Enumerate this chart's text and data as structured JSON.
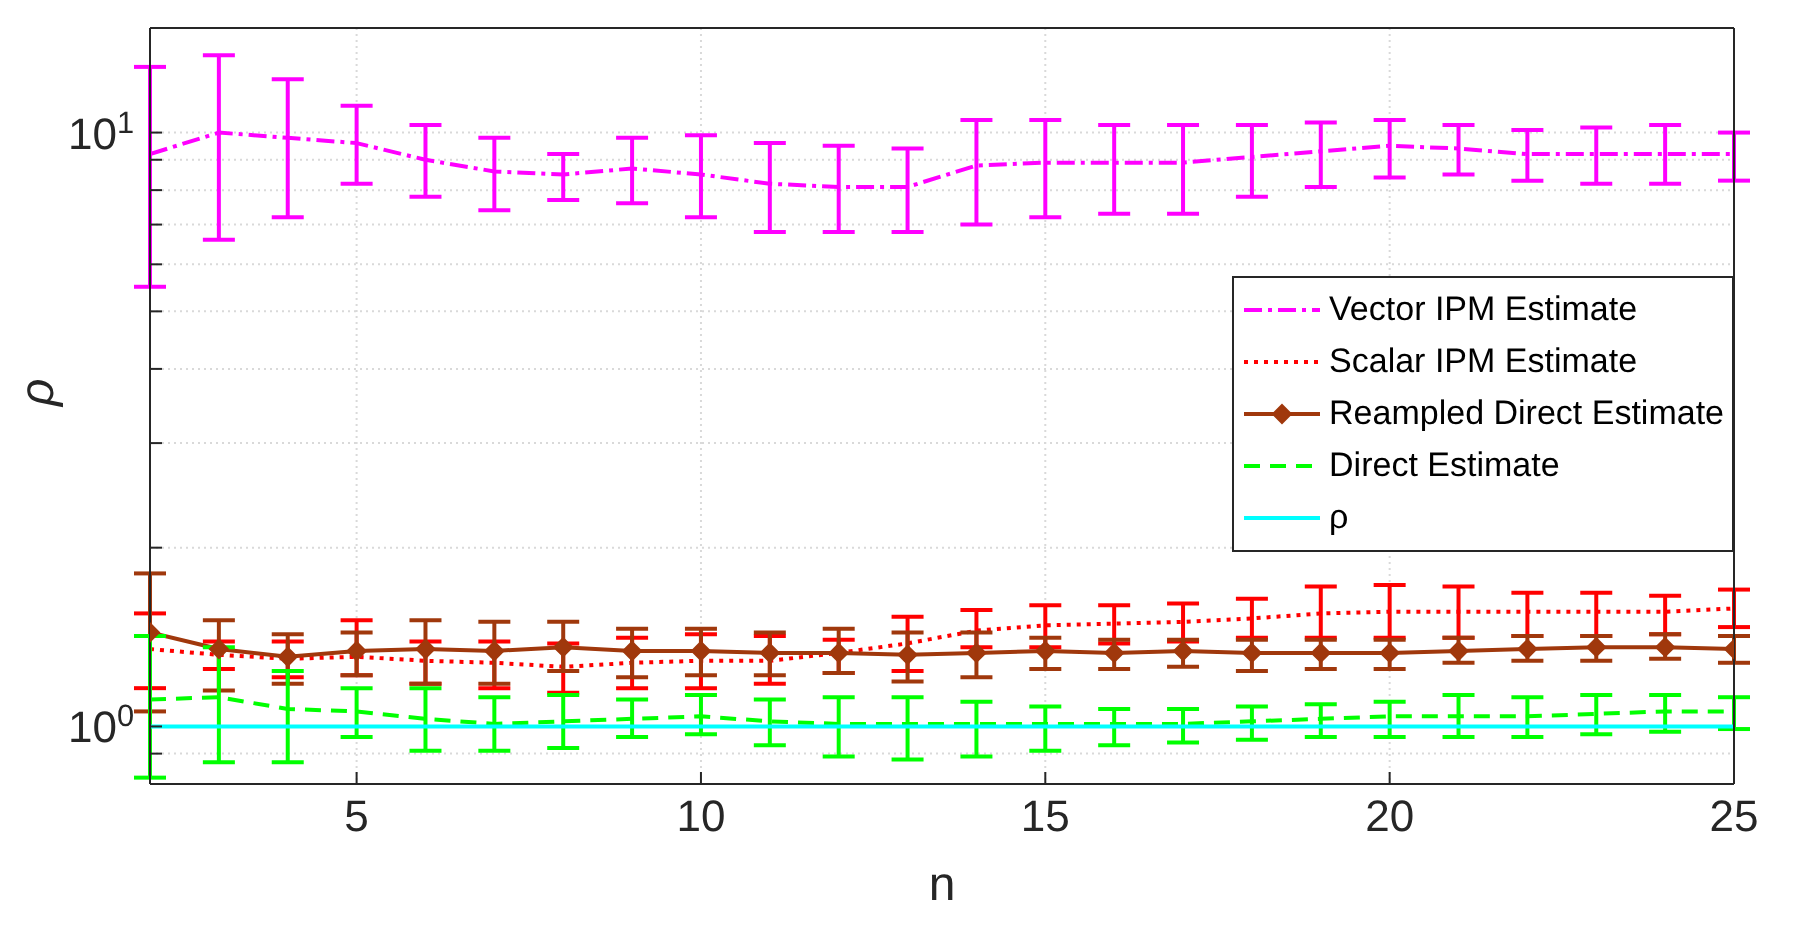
{
  "chart_data": {
    "type": "line",
    "xlabel": "n",
    "ylabel": "ρ",
    "log": "y",
    "grid": true,
    "legend": "right",
    "x": [
      2,
      3,
      4,
      5,
      6,
      7,
      8,
      9,
      10,
      11,
      12,
      13,
      14,
      15,
      16,
      17,
      18,
      19,
      20,
      21,
      22,
      23,
      24,
      25
    ],
    "xlim": [
      2,
      25
    ],
    "xticks": [
      5,
      10,
      15,
      20,
      25
    ],
    "ylim": [
      0.8,
      15
    ],
    "yticks": [
      {
        "value": 0.9,
        "label": null
      },
      {
        "value": 1,
        "label": "10$^{0}$"
      },
      {
        "value": 2,
        "label": null
      },
      {
        "value": 3,
        "label": null
      },
      {
        "value": 4,
        "label": null
      },
      {
        "value": 5,
        "label": null
      },
      {
        "value": 6,
        "label": null
      },
      {
        "value": 7,
        "label": null
      },
      {
        "value": 8,
        "label": null
      },
      {
        "value": 9,
        "label": null
      },
      {
        "value": 10,
        "label": "10$^{1}$"
      }
    ],
    "series": [
      {
        "name": "Vector IPM Estimate",
        "color": "#ff00ff",
        "line_style": "dashdot",
        "marker": "none",
        "values": [
          9.2,
          10.0,
          9.8,
          9.6,
          9.0,
          8.6,
          8.5,
          8.7,
          8.5,
          8.2,
          8.1,
          8.1,
          8.8,
          8.9,
          8.9,
          8.9,
          9.1,
          9.3,
          9.5,
          9.4,
          9.2,
          9.2,
          9.2,
          9.2
        ],
        "errors": [
          [
            5.5,
            12.9
          ],
          [
            6.6,
            13.5
          ],
          [
            7.2,
            12.3
          ],
          [
            8.2,
            11.1
          ],
          [
            7.8,
            10.3
          ],
          [
            7.4,
            9.8
          ],
          [
            7.7,
            9.2
          ],
          [
            7.6,
            9.8
          ],
          [
            7.2,
            9.9
          ],
          [
            6.8,
            9.6
          ],
          [
            6.8,
            9.5
          ],
          [
            6.8,
            9.4
          ],
          [
            7.0,
            10.5
          ],
          [
            7.2,
            10.5
          ],
          [
            7.3,
            10.3
          ],
          [
            7.3,
            10.3
          ],
          [
            7.8,
            10.3
          ],
          [
            8.1,
            10.4
          ],
          [
            8.4,
            10.5
          ],
          [
            8.5,
            10.3
          ],
          [
            8.3,
            10.1
          ],
          [
            8.2,
            10.2
          ],
          [
            8.2,
            10.3
          ],
          [
            8.3,
            10.0
          ]
        ]
      },
      {
        "name": "Scalar IPM Estimate",
        "color": "#ff0000",
        "line_style": "dotted",
        "marker": "none",
        "values": [
          1.35,
          1.32,
          1.3,
          1.31,
          1.29,
          1.28,
          1.26,
          1.28,
          1.29,
          1.29,
          1.33,
          1.38,
          1.45,
          1.48,
          1.49,
          1.5,
          1.52,
          1.55,
          1.56,
          1.56,
          1.56,
          1.56,
          1.56,
          1.58
        ],
        "errors": [
          [
            1.16,
            1.55
          ],
          [
            1.25,
            1.39
          ],
          [
            1.21,
            1.39
          ],
          [
            1.22,
            1.51
          ],
          [
            1.18,
            1.39
          ],
          [
            1.16,
            1.39
          ],
          [
            1.14,
            1.38
          ],
          [
            1.16,
            1.41
          ],
          [
            1.16,
            1.43
          ],
          [
            1.18,
            1.42
          ],
          [
            1.23,
            1.4
          ],
          [
            1.24,
            1.53
          ],
          [
            1.36,
            1.57
          ],
          [
            1.36,
            1.6
          ],
          [
            1.38,
            1.6
          ],
          [
            1.39,
            1.61
          ],
          [
            1.41,
            1.64
          ],
          [
            1.41,
            1.72
          ],
          [
            1.41,
            1.73
          ],
          [
            1.41,
            1.72
          ],
          [
            1.42,
            1.68
          ],
          [
            1.42,
            1.68
          ],
          [
            1.43,
            1.66
          ],
          [
            1.47,
            1.7
          ]
        ]
      },
      {
        "name": "Reampled Direct Estimate",
        "color": "#a0380c",
        "line_style": "solid",
        "marker": "diamond",
        "values": [
          1.44,
          1.35,
          1.31,
          1.34,
          1.35,
          1.34,
          1.36,
          1.34,
          1.34,
          1.33,
          1.33,
          1.32,
          1.33,
          1.34,
          1.33,
          1.34,
          1.33,
          1.33,
          1.33,
          1.34,
          1.35,
          1.36,
          1.36,
          1.35
        ],
        "errors": [
          [
            1.06,
            1.81
          ],
          [
            1.15,
            1.51
          ],
          [
            1.18,
            1.43
          ],
          [
            1.22,
            1.44
          ],
          [
            1.18,
            1.51
          ],
          [
            1.18,
            1.5
          ],
          [
            1.24,
            1.5
          ],
          [
            1.21,
            1.46
          ],
          [
            1.22,
            1.46
          ],
          [
            1.22,
            1.44
          ],
          [
            1.23,
            1.46
          ],
          [
            1.19,
            1.44
          ],
          [
            1.21,
            1.44
          ],
          [
            1.25,
            1.41
          ],
          [
            1.25,
            1.4
          ],
          [
            1.26,
            1.4
          ],
          [
            1.24,
            1.4
          ],
          [
            1.25,
            1.4
          ],
          [
            1.25,
            1.4
          ],
          [
            1.28,
            1.41
          ],
          [
            1.29,
            1.42
          ],
          [
            1.29,
            1.42
          ],
          [
            1.3,
            1.43
          ],
          [
            1.28,
            1.42
          ]
        ]
      },
      {
        "name": "Direct Estimate",
        "color": "#00ff00",
        "line_style": "dashed",
        "marker": "none",
        "values": [
          1.11,
          1.12,
          1.07,
          1.06,
          1.03,
          1.01,
          1.02,
          1.03,
          1.04,
          1.02,
          1.01,
          1.01,
          1.01,
          1.01,
          1.01,
          1.01,
          1.02,
          1.03,
          1.04,
          1.04,
          1.04,
          1.05,
          1.06,
          1.06
        ],
        "errors": [
          [
            0.82,
            1.42
          ],
          [
            0.87,
            1.36
          ],
          [
            0.87,
            1.24
          ],
          [
            0.96,
            1.16
          ],
          [
            0.91,
            1.16
          ],
          [
            0.91,
            1.12
          ],
          [
            0.92,
            1.13
          ],
          [
            0.96,
            1.11
          ],
          [
            0.97,
            1.13
          ],
          [
            0.93,
            1.11
          ],
          [
            0.89,
            1.12
          ],
          [
            0.88,
            1.12
          ],
          [
            0.89,
            1.1
          ],
          [
            0.91,
            1.08
          ],
          [
            0.93,
            1.07
          ],
          [
            0.94,
            1.07
          ],
          [
            0.95,
            1.08
          ],
          [
            0.96,
            1.09
          ],
          [
            0.96,
            1.1
          ],
          [
            0.96,
            1.13
          ],
          [
            0.96,
            1.12
          ],
          [
            0.97,
            1.13
          ],
          [
            0.98,
            1.13
          ],
          [
            0.99,
            1.12
          ]
        ]
      },
      {
        "name": "ρ",
        "color": "#00ffff",
        "line_style": "solid",
        "marker": "none",
        "values": [
          1,
          1,
          1,
          1,
          1,
          1,
          1,
          1,
          1,
          1,
          1,
          1,
          1,
          1,
          1,
          1,
          1,
          1,
          1,
          1,
          1,
          1,
          1,
          1
        ]
      }
    ]
  }
}
